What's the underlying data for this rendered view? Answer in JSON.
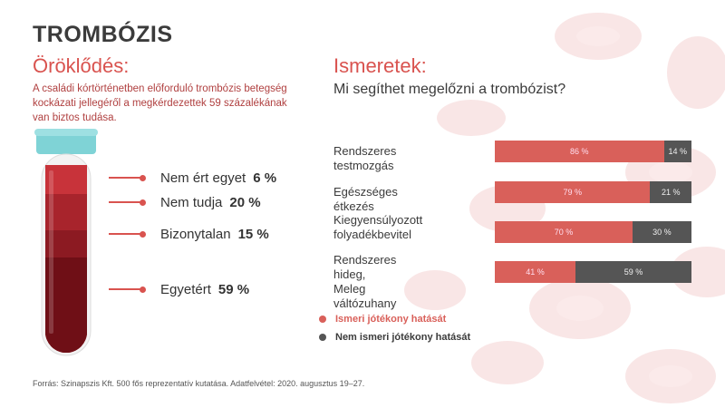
{
  "title": "TROMBÓZIS",
  "left": {
    "heading": "Öröklődés:",
    "intro": "A családi kórtörténetben előforduló trombózis betegség kockázati jellegéről a megkérdezettek 59 százalékának van biztos tudása.",
    "items": [
      {
        "label": "Nem ért egyet",
        "pct": "6 %"
      },
      {
        "label": "Nem tudja",
        "pct": "20 %"
      },
      {
        "label": "Bizonytalan",
        "pct": "15 %"
      },
      {
        "label": "Egyetért",
        "pct": "59 %"
      }
    ]
  },
  "right": {
    "heading": "Ismeretek:",
    "question": "Mi segíthet megelőzni a trombózist?",
    "legend": {
      "known": "Ismeri jótékony hatását",
      "unknown": "Nem ismeri jótékony hatását"
    }
  },
  "colors": {
    "known": "#d9605a",
    "unknown": "#555555",
    "accent": "#d9534f"
  },
  "chart_data": [
    {
      "type": "bar",
      "categories": [
        "Nem ért egyet",
        "Nem tudja",
        "Bizonytalan",
        "Egyetért"
      ],
      "values": [
        6,
        20,
        15,
        59
      ],
      "labels": [
        "6 %",
        "20 %",
        "15 %",
        "59 %"
      ]
    },
    {
      "type": "bar",
      "stacked": true,
      "orientation": "horizontal",
      "categories": [
        "Rendszeres testmozgás",
        "Egészséges étkezés",
        "Kiegyensúlyozott folyadékbevitel",
        "Rendszeres hideg, Meleg váltózuhany"
      ],
      "category_lines": [
        [
          "Rendszeres testmozgás"
        ],
        [
          "Egészséges étkezés"
        ],
        [
          "Kiegyensúlyozott",
          "folyadékbevitel"
        ],
        [
          "Rendszeres hideg,",
          "Meleg váltózuhany"
        ]
      ],
      "series": [
        {
          "name": "Ismeri jótékony hatását",
          "values": [
            86,
            79,
            70,
            41
          ],
          "labels": [
            "86 %",
            "79 %",
            "70 %",
            "41 %"
          ]
        },
        {
          "name": "Nem ismeri jótékony hatását",
          "values": [
            14,
            21,
            30,
            59
          ],
          "labels": [
            "14 %",
            "21 %",
            "30 %",
            "59 %"
          ]
        }
      ]
    }
  ],
  "source": "Forrás: Szinapszis Kft. 500 fős reprezentatív kutatása. Adatfelvétel: 2020. augusztus 19–27."
}
